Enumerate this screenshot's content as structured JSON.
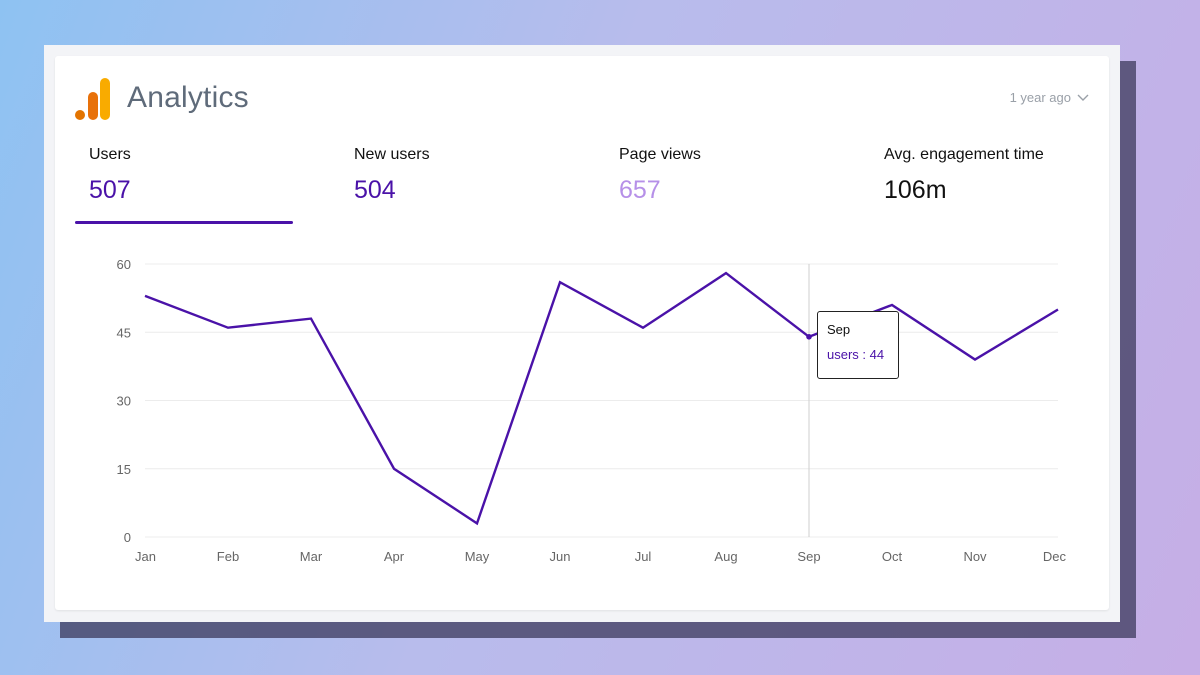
{
  "app": {
    "title": "Analytics"
  },
  "range": {
    "label": "1 year ago"
  },
  "colors": {
    "accent": "#4a12a8",
    "line": "#4a12a8",
    "pageviews": "#b690e8",
    "text": "#111111"
  },
  "tabs": [
    {
      "label": "Users",
      "value": "507",
      "color": "#4a12a8",
      "selected": true
    },
    {
      "label": "New users",
      "value": "504",
      "color": "#4a12a8",
      "selected": false
    },
    {
      "label": "Page views",
      "value": "657",
      "color": "#b690e8",
      "selected": false
    },
    {
      "label": "Avg. engagement time",
      "value": "106m",
      "color": "#111111",
      "selected": false
    }
  ],
  "chart_data": {
    "type": "line",
    "categories": [
      "Jan",
      "Feb",
      "Mar",
      "Apr",
      "May",
      "Jun",
      "Jul",
      "Aug",
      "Sep",
      "Oct",
      "Nov",
      "Dec"
    ],
    "series": [
      {
        "name": "users",
        "values": [
          53,
          46,
          48,
          15,
          3,
          56,
          46,
          58,
          44,
          51,
          39,
          50
        ]
      }
    ],
    "yticks": [
      0,
      15,
      30,
      45,
      60
    ],
    "ylim": [
      0,
      60
    ],
    "grid": true,
    "legend": "none",
    "tooltip": {
      "category": "Sep",
      "series": "users",
      "value": 44
    }
  }
}
